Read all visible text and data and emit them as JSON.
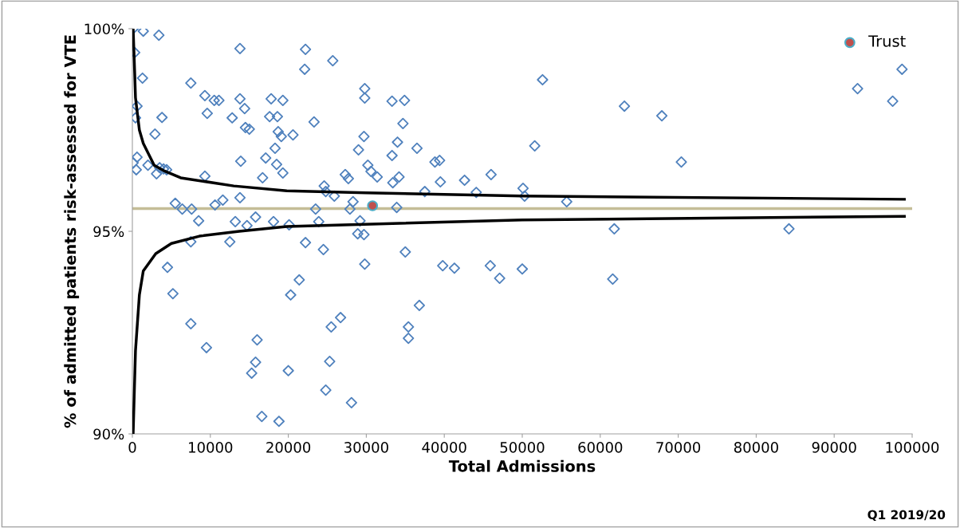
{
  "chart_data": {
    "type": "scatter",
    "xlabel": "Total Admissions",
    "ylabel": "% of admitted patients risk-assessed for VTE",
    "xlim": [
      0,
      100000
    ],
    "xticks": [
      0,
      10000,
      20000,
      30000,
      40000,
      50000,
      60000,
      70000,
      80000,
      90000,
      100000
    ],
    "ylim": [
      90,
      100
    ],
    "yticks": [
      {
        "value": 90,
        "label": "90%"
      },
      {
        "value": 95,
        "label": "95%"
      },
      {
        "value": 100,
        "label": "100%"
      }
    ],
    "grid": false,
    "legend": "top right",
    "annotations": [
      "Q1 2019/20"
    ],
    "ref_lines": [
      {
        "axis": "y",
        "value": 95.56,
        "label": null,
        "color": "#c4bd97",
        "line_style": "solid"
      }
    ],
    "series": [
      {
        "color": "#4f81bd",
        "marker": "diamond",
        "x": [
          100,
          1400,
          3400,
          300,
          1300,
          600,
          400,
          3800,
          7500,
          13800,
          2900,
          9300,
          10500,
          11100,
          13800,
          14400,
          9600,
          12800,
          17800,
          19300,
          17600,
          18600,
          14500,
          15000,
          18700,
          19100,
          18300,
          17100,
          18500,
          19300,
          600,
          100,
          500,
          2000,
          3100,
          3500,
          4000,
          4400,
          13900,
          9300,
          16700,
          5500,
          6400,
          7600,
          10600,
          11600,
          13800,
          8500,
          13200,
          14700,
          15800,
          18100,
          7500,
          12500,
          4500,
          5200,
          7500,
          9500,
          16000,
          15800,
          15300,
          16600,
          18800,
          22200,
          25700,
          22100,
          29800,
          29800,
          33300,
          34900,
          23300,
          34700,
          29700,
          20600,
          34000,
          36500,
          29000,
          33300,
          30200,
          30600,
          31400,
          27300,
          27700,
          34200,
          33400,
          38800,
          24600,
          24800,
          25900,
          37500,
          28300,
          23500,
          27900,
          33900,
          23900,
          29200,
          20100,
          28900,
          29700,
          22200,
          24500,
          29800,
          35000,
          21400,
          20300,
          36800,
          26700,
          25500,
          35400,
          35400,
          25300,
          20000,
          24800,
          28100,
          39400,
          39500,
          39800,
          41300,
          42600,
          44100,
          46000,
          45900,
          47100,
          50000,
          50100,
          50300,
          52600,
          51600,
          55700,
          61800,
          63100,
          61600,
          67900,
          70400,
          84200,
          93000,
          97500,
          98700
        ],
        "values": [
          100.0,
          99.94,
          99.84,
          99.41,
          98.78,
          98.09,
          97.8,
          97.81,
          98.66,
          99.51,
          97.4,
          98.35,
          98.23,
          98.23,
          98.27,
          98.03,
          97.91,
          97.8,
          98.27,
          98.23,
          97.83,
          97.83,
          97.56,
          97.52,
          97.46,
          97.34,
          97.05,
          96.81,
          96.65,
          96.44,
          96.83,
          96.69,
          96.52,
          96.63,
          96.42,
          96.57,
          96.54,
          96.52,
          96.73,
          96.36,
          96.32,
          95.69,
          95.55,
          95.55,
          95.65,
          95.77,
          95.83,
          95.26,
          95.24,
          95.14,
          95.35,
          95.24,
          94.74,
          94.74,
          94.11,
          93.46,
          92.72,
          92.13,
          92.32,
          91.77,
          91.5,
          90.43,
          90.31,
          99.49,
          99.21,
          99.0,
          98.52,
          98.29,
          98.21,
          98.23,
          97.7,
          97.66,
          97.34,
          97.38,
          97.2,
          97.05,
          97.01,
          96.87,
          96.63,
          96.48,
          96.34,
          96.4,
          96.3,
          96.34,
          96.2,
          96.71,
          96.12,
          95.98,
          95.87,
          95.98,
          95.73,
          95.55,
          95.55,
          95.59,
          95.24,
          95.26,
          95.16,
          94.94,
          94.92,
          94.72,
          94.55,
          94.19,
          94.49,
          93.8,
          93.43,
          93.17,
          92.87,
          92.64,
          92.64,
          92.36,
          91.79,
          91.56,
          91.08,
          90.77,
          96.75,
          96.22,
          94.15,
          94.09,
          96.26,
          95.96,
          96.4,
          94.15,
          93.84,
          94.07,
          96.06,
          95.87,
          98.74,
          97.11,
          95.73,
          95.06,
          98.09,
          93.82,
          97.85,
          96.71,
          95.06,
          98.52,
          98.21,
          99.0
        ]
      },
      {
        "type": "line",
        "color": "#000000",
        "marker": "none",
        "x": [
          100,
          300,
          400,
          900,
          1400,
          2800,
          4000,
          6200,
          13000,
          19800,
          30000,
          50000,
          99000
        ],
        "values": [
          100.0,
          98.9,
          98.3,
          97.5,
          97.17,
          96.63,
          96.5,
          96.32,
          96.12,
          96.0,
          95.95,
          95.87,
          95.79
        ]
      },
      {
        "type": "line",
        "color": "#000000",
        "marker": "none",
        "x": [
          100,
          400,
          900,
          1400,
          3000,
          5000,
          8600,
          13700,
          19800,
          50000,
          99000
        ],
        "values": [
          90.0,
          92.05,
          93.43,
          94.02,
          94.45,
          94.7,
          94.88,
          95.0,
          95.12,
          95.28,
          95.37
        ]
      },
      {
        "name": "Trust",
        "color": "#c0504d",
        "marker": "circle",
        "x": [
          30800
        ],
        "values": [
          95.63
        ]
      }
    ]
  }
}
